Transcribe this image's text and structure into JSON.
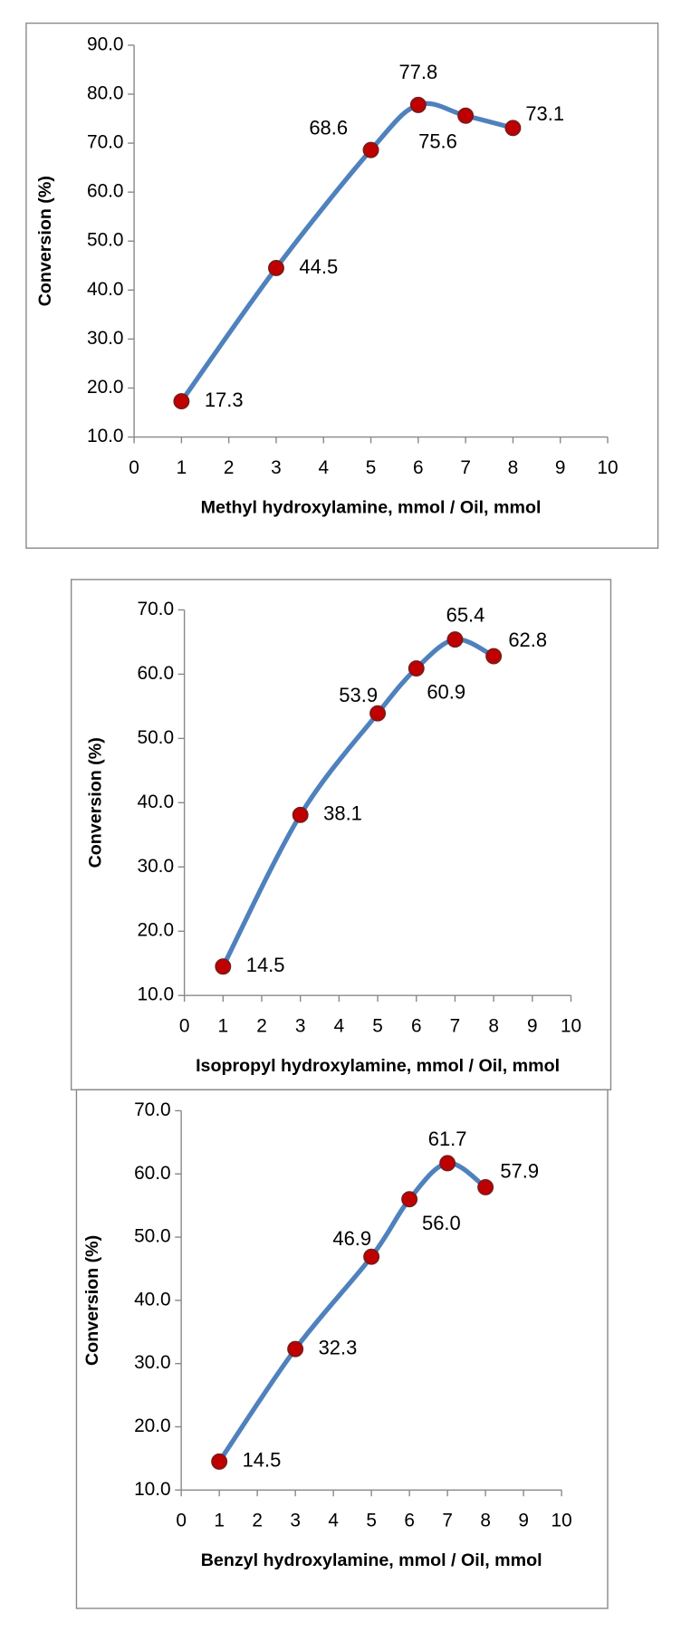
{
  "chart_data": [
    {
      "type": "line",
      "x": [
        1,
        3,
        5,
        6,
        7,
        8
      ],
      "values": [
        17.3,
        44.5,
        68.6,
        77.8,
        75.6,
        73.1
      ],
      "xlabel": "Methyl hydroxylamine, mmol / Oil, mmol",
      "ylabel": "Conversion (%)",
      "color": "#4f81bd",
      "marker_color": "#c00000",
      "xlim": [
        0,
        10
      ],
      "xticks": [
        0,
        1,
        2,
        3,
        4,
        5,
        6,
        7,
        8,
        9,
        10
      ],
      "ylim": [
        10,
        90
      ],
      "yticks": [
        {
          "value": 10,
          "label": "10.0"
        },
        {
          "value": 20,
          "label": "20.0"
        },
        {
          "value": 30,
          "label": "30.0"
        },
        {
          "value": 40,
          "label": "40.0"
        },
        {
          "value": 50,
          "label": "50.0"
        },
        {
          "value": 60,
          "label": "60.0"
        },
        {
          "value": 70,
          "label": "70.0"
        },
        {
          "value": 80,
          "label": "80.0"
        },
        {
          "value": 90,
          "label": "90.0"
        }
      ]
    },
    {
      "type": "line",
      "x": [
        1,
        3,
        5,
        6,
        7,
        8
      ],
      "values": [
        14.5,
        38.1,
        53.9,
        60.9,
        65.4,
        62.8
      ],
      "xlabel": "Isopropyl hydroxylamine, mmol / Oil, mmol",
      "ylabel": "Conversion (%)",
      "color": "#4f81bd",
      "marker_color": "#c00000",
      "xlim": [
        0,
        10
      ],
      "xticks": [
        0,
        1,
        2,
        3,
        4,
        5,
        6,
        7,
        8,
        9,
        10
      ],
      "ylim": [
        10,
        70
      ],
      "yticks": [
        {
          "value": 10,
          "label": "10.0"
        },
        {
          "value": 20,
          "label": "20.0"
        },
        {
          "value": 30,
          "label": "30.0"
        },
        {
          "value": 40,
          "label": "40.0"
        },
        {
          "value": 50,
          "label": "50.0"
        },
        {
          "value": 60,
          "label": "60.0"
        },
        {
          "value": 70,
          "label": "70.0"
        }
      ]
    },
    {
      "type": "line",
      "x": [
        1,
        3,
        5,
        6,
        7,
        8
      ],
      "values": [
        14.5,
        32.3,
        46.9,
        56.0,
        61.7,
        57.9
      ],
      "value_labels": [
        "14.5",
        "32.3",
        "46.9",
        "56.0",
        "61.7",
        "57.9"
      ],
      "xlabel": "Benzyl hydroxylamine, mmol / Oil, mmol",
      "ylabel": "Conversion (%)",
      "color": "#4f81bd",
      "marker_color": "#c00000",
      "xlim": [
        0,
        10
      ],
      "xticks": [
        0,
        1,
        2,
        3,
        4,
        5,
        6,
        7,
        8,
        9,
        10
      ],
      "ylim": [
        10,
        70
      ],
      "yticks": [
        {
          "value": 10,
          "label": "10.0"
        },
        {
          "value": 20,
          "label": "20.0"
        },
        {
          "value": 30,
          "label": "30.0"
        },
        {
          "value": 40,
          "label": "40.0"
        },
        {
          "value": 50,
          "label": "50.0"
        },
        {
          "value": 60,
          "label": "60.0"
        },
        {
          "value": 70,
          "label": "70.0"
        }
      ]
    }
  ]
}
